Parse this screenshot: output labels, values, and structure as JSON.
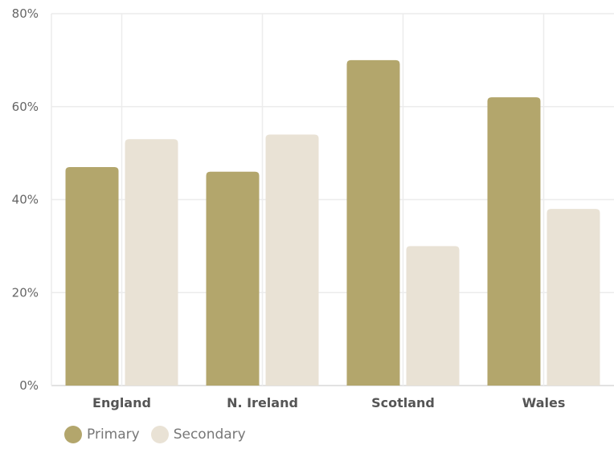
{
  "chart_data": {
    "type": "bar",
    "title": "",
    "xlabel": "",
    "ylabel": "",
    "categories": [
      "England",
      "N. Ireland",
      "Scotland",
      "Wales"
    ],
    "series": [
      {
        "name": "Primary",
        "values": [
          47,
          46,
          70,
          62
        ],
        "color": "#b3a66c"
      },
      {
        "name": "Secondary",
        "values": [
          53,
          54,
          30,
          38
        ],
        "color": "#e9e2d5"
      }
    ],
    "ylim": [
      0,
      80
    ],
    "yticks": [
      0,
      20,
      40,
      60,
      80
    ],
    "ytick_labels": [
      "0%",
      "20%",
      "40%",
      "60%",
      "80%"
    ],
    "grid": true,
    "legend_position": "bottom-left"
  }
}
